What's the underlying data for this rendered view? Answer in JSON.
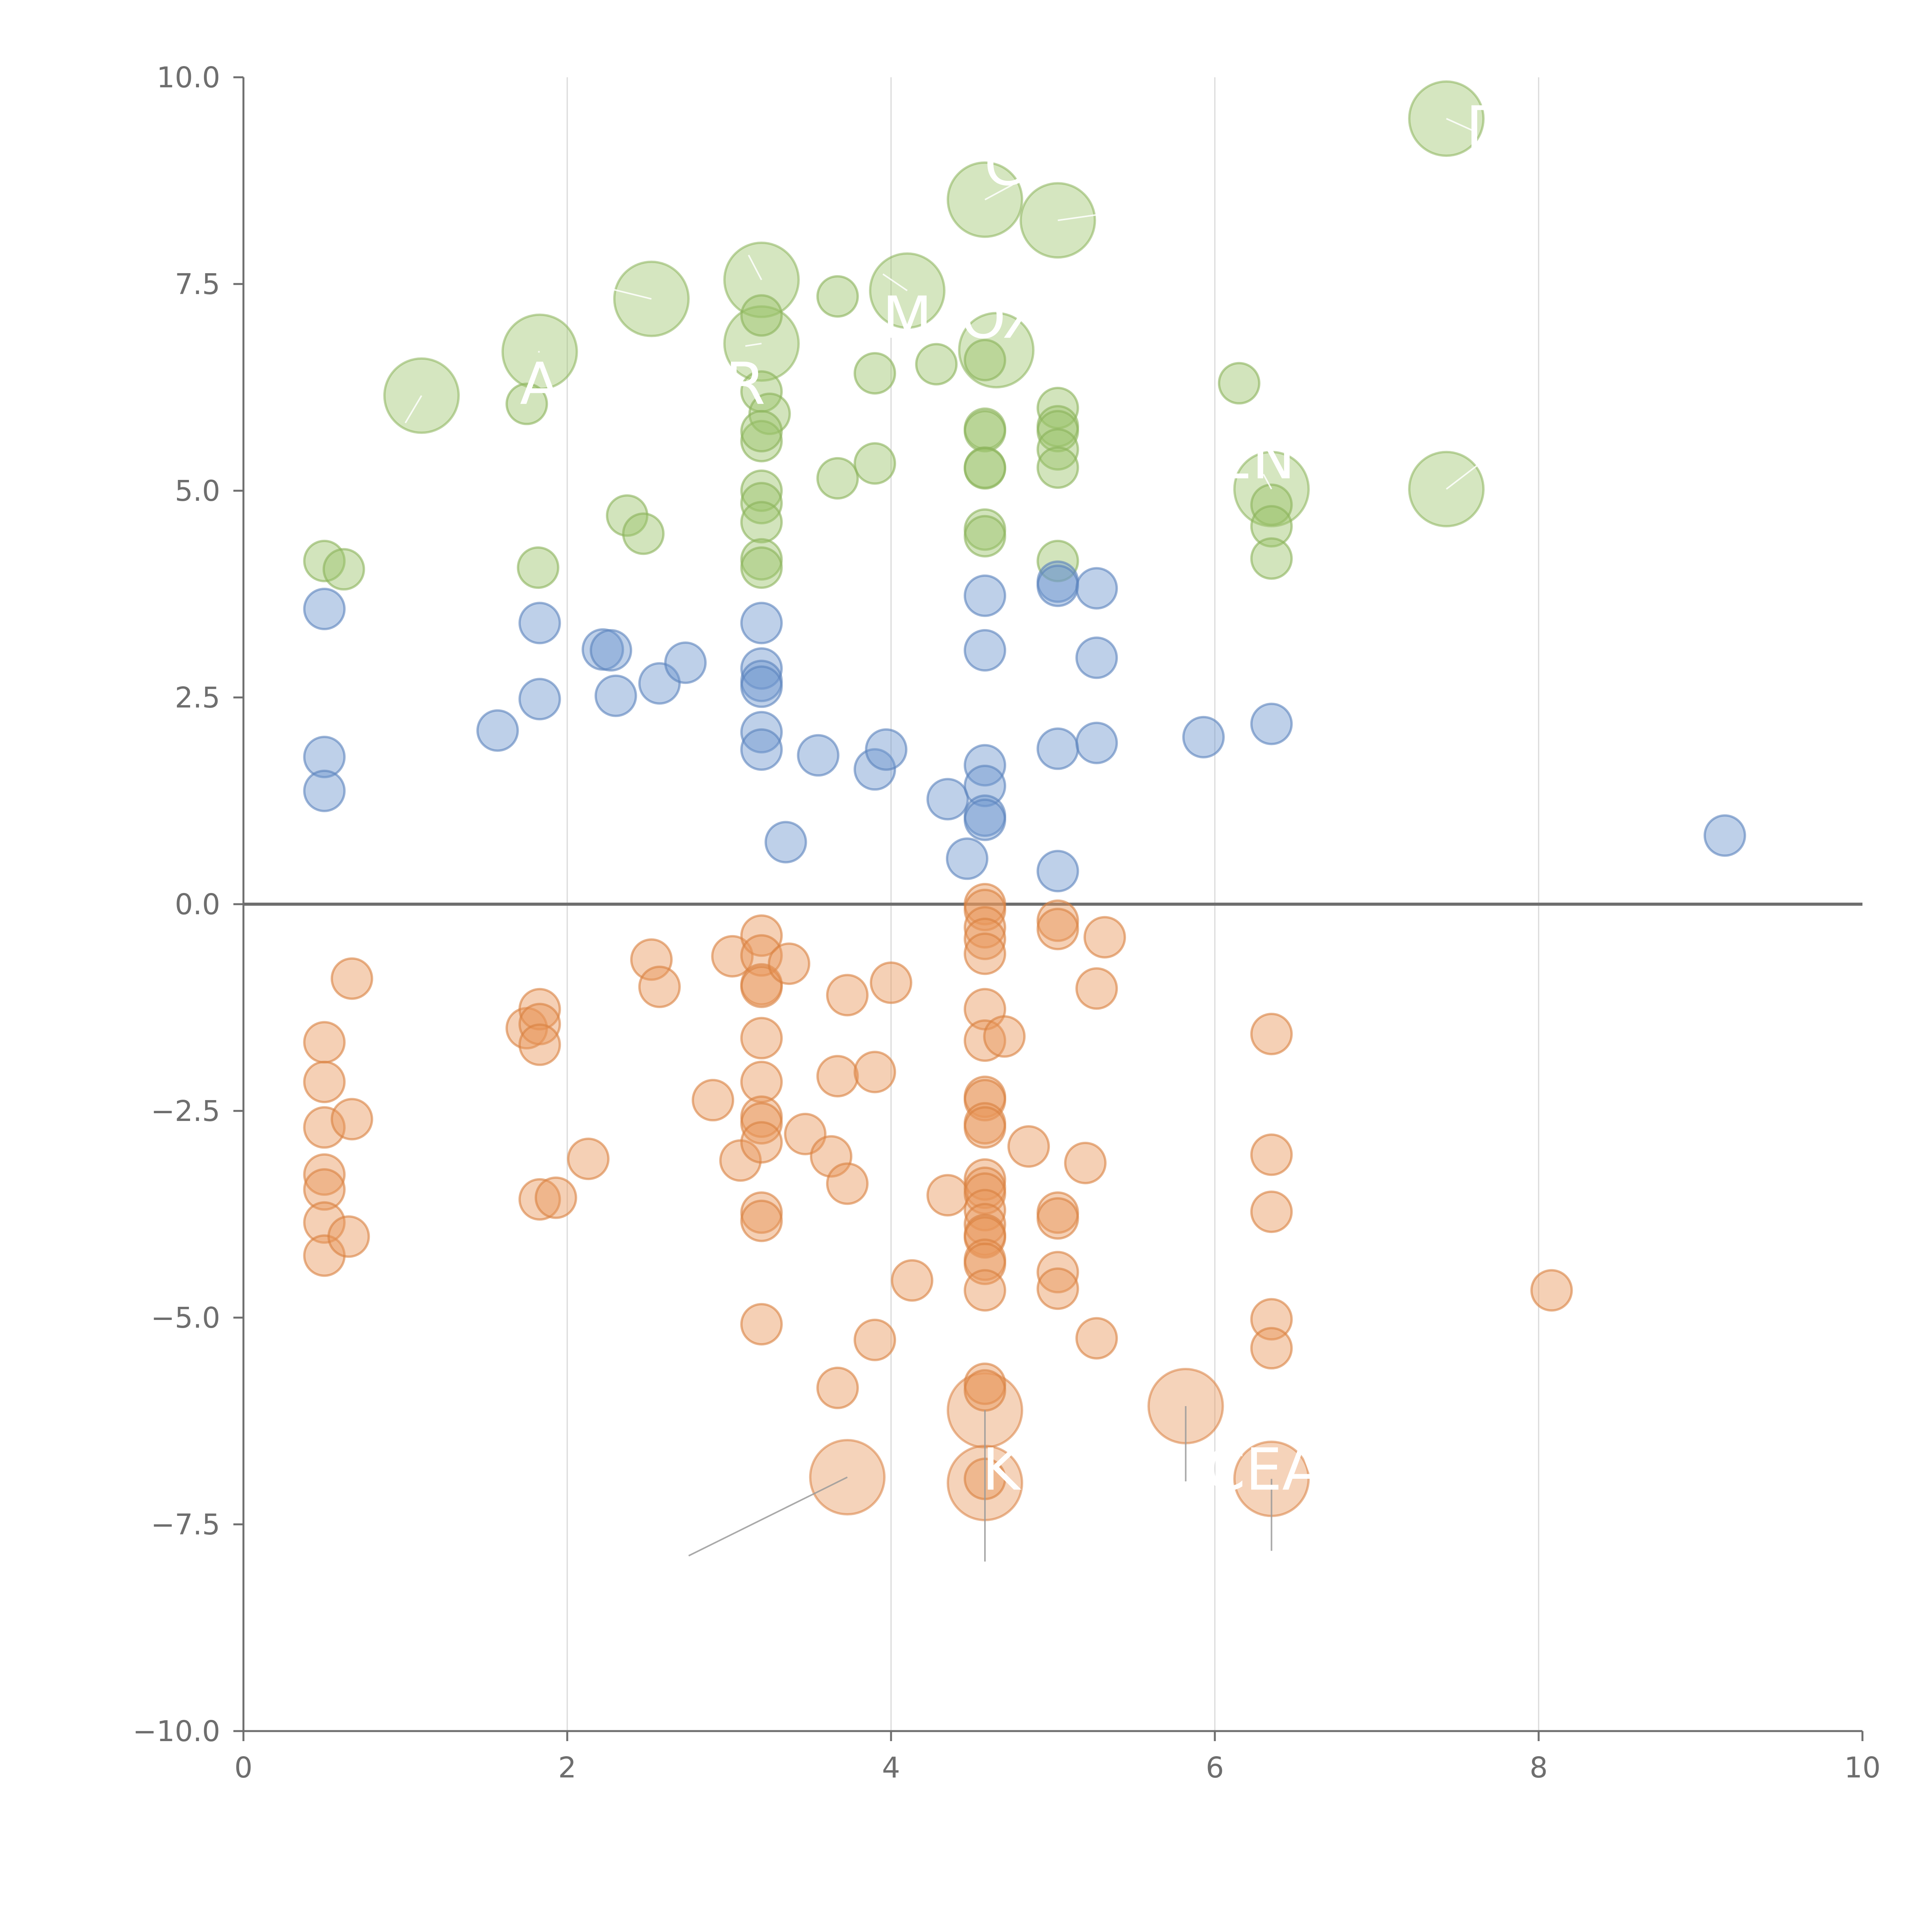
{
  "chart_data": {
    "type": "scatter",
    "title": "",
    "xlabel": "",
    "ylabel": "",
    "xlim": [
      0,
      10
    ],
    "ylim": [
      -10,
      10
    ],
    "grid": "vertical",
    "reference_line_y": 0,
    "x_ticks": [
      "0",
      "2",
      "4",
      "6",
      "8",
      "10"
    ],
    "y_ticks": [
      "10.0",
      "7.5",
      "5.0",
      "2.5",
      "0.0",
      "−2.5",
      "−5.0",
      "−7.5",
      "−10.0"
    ],
    "x_tick_values": [
      0,
      2,
      4,
      6,
      8,
      10
    ],
    "y_tick_values": [
      10,
      7.5,
      5,
      2.5,
      0,
      -2.5,
      -5,
      -7.5,
      -10
    ],
    "colors": {
      "green": "#9cc36a",
      "blue": "#6f97cf",
      "orange": "#e8965a",
      "green_stroke": "#8ab35a",
      "blue_stroke": "#5a82bd",
      "orange_stroke": "#d9803f",
      "annotation_line": "#9a9a9a",
      "axis": "#6e6e6e"
    },
    "size_scale": {
      "small": 1,
      "large": 2
    },
    "series": [
      {
        "name": "green",
        "color_key": "green",
        "points": [
          [
            0.5,
            4.15
          ],
          [
            0.62,
            4.05
          ],
          [
            1.75,
            6.05
          ],
          [
            1.82,
            4.07
          ],
          [
            2.37,
            4.7
          ],
          [
            2.47,
            4.48
          ],
          [
            3.2,
            7.12
          ],
          [
            3.2,
            6.2
          ],
          [
            3.25,
            5.93
          ],
          [
            3.2,
            5.6
          ],
          [
            3.2,
            5.72
          ],
          [
            3.2,
            5.0
          ],
          [
            3.2,
            4.85
          ],
          [
            3.2,
            4.62
          ],
          [
            3.2,
            4.17
          ],
          [
            3.2,
            4.07
          ],
          [
            3.67,
            7.35
          ],
          [
            3.67,
            5.15
          ],
          [
            3.9,
            6.42
          ],
          [
            3.9,
            5.33
          ],
          [
            4.28,
            6.53
          ],
          [
            4.58,
            6.58
          ],
          [
            4.58,
            5.75
          ],
          [
            4.58,
            5.72
          ],
          [
            4.58,
            5.28
          ],
          [
            4.58,
            5.27
          ],
          [
            4.58,
            4.53
          ],
          [
            4.58,
            4.45
          ],
          [
            5.03,
            6.0
          ],
          [
            5.03,
            5.78
          ],
          [
            5.03,
            5.72
          ],
          [
            5.03,
            5.5
          ],
          [
            5.03,
            5.28
          ],
          [
            5.03,
            4.15
          ],
          [
            6.15,
            6.3
          ],
          [
            6.35,
            4.83
          ],
          [
            6.35,
            4.57
          ],
          [
            6.35,
            4.18
          ]
        ],
        "large_points": [
          [
            1.1,
            6.15
          ],
          [
            1.83,
            6.68
          ],
          [
            2.52,
            7.32
          ],
          [
            3.2,
            7.55
          ],
          [
            3.2,
            6.78
          ],
          [
            4.1,
            7.42
          ],
          [
            4.65,
            6.7
          ],
          [
            4.58,
            8.52
          ],
          [
            5.03,
            8.27
          ],
          [
            6.35,
            5.02
          ],
          [
            7.43,
            9.5
          ],
          [
            7.43,
            5.02
          ]
        ]
      },
      {
        "name": "blue",
        "color_key": "blue",
        "points": [
          [
            0.5,
            3.57
          ],
          [
            0.5,
            1.78
          ],
          [
            0.5,
            1.37
          ],
          [
            1.57,
            2.1
          ],
          [
            1.83,
            3.4
          ],
          [
            1.83,
            2.48
          ],
          [
            2.22,
            3.08
          ],
          [
            2.27,
            3.07
          ],
          [
            2.3,
            2.52
          ],
          [
            2.57,
            2.67
          ],
          [
            2.73,
            2.92
          ],
          [
            3.2,
            3.4
          ],
          [
            3.2,
            2.85
          ],
          [
            3.2,
            2.7
          ],
          [
            3.2,
            2.63
          ],
          [
            3.2,
            2.08
          ],
          [
            3.2,
            1.87
          ],
          [
            3.35,
            0.75
          ],
          [
            3.55,
            1.8
          ],
          [
            3.9,
            1.63
          ],
          [
            3.97,
            1.87
          ],
          [
            4.35,
            1.27
          ],
          [
            4.47,
            0.55
          ],
          [
            4.58,
            3.73
          ],
          [
            4.58,
            3.07
          ],
          [
            4.58,
            1.68
          ],
          [
            4.58,
            1.43
          ],
          [
            4.58,
            1.07
          ],
          [
            4.58,
            1.02
          ],
          [
            5.03,
            3.9
          ],
          [
            5.03,
            3.85
          ],
          [
            5.03,
            1.88
          ],
          [
            5.03,
            0.4
          ],
          [
            5.27,
            3.82
          ],
          [
            5.27,
            2.98
          ],
          [
            5.27,
            1.95
          ],
          [
            5.93,
            2.02
          ],
          [
            6.35,
            2.18
          ],
          [
            9.15,
            0.83
          ]
        ]
      },
      {
        "name": "orange",
        "color_key": "orange",
        "points": [
          [
            0.5,
            -1.67
          ],
          [
            0.5,
            -2.15
          ],
          [
            0.5,
            -2.7
          ],
          [
            0.5,
            -3.27
          ],
          [
            0.5,
            -3.45
          ],
          [
            0.5,
            -3.85
          ],
          [
            0.5,
            -4.25
          ],
          [
            0.67,
            -0.9
          ],
          [
            0.67,
            -2.6
          ],
          [
            0.65,
            -4.02
          ],
          [
            1.75,
            -1.5
          ],
          [
            1.83,
            -1.27
          ],
          [
            1.83,
            -1.45
          ],
          [
            1.83,
            -1.7
          ],
          [
            1.83,
            -3.57
          ],
          [
            1.93,
            -3.55
          ],
          [
            2.13,
            -3.08
          ],
          [
            2.52,
            -0.67
          ],
          [
            2.57,
            -1.0
          ],
          [
            2.9,
            -2.37
          ],
          [
            3.02,
            -0.63
          ],
          [
            3.07,
            -3.1
          ],
          [
            3.2,
            -0.38
          ],
          [
            3.2,
            -0.62
          ],
          [
            3.2,
            -0.97
          ],
          [
            3.2,
            -1.0
          ],
          [
            3.2,
            -1.62
          ],
          [
            3.2,
            -2.15
          ],
          [
            3.2,
            -2.57
          ],
          [
            3.2,
            -2.65
          ],
          [
            3.2,
            -2.88
          ],
          [
            3.2,
            -3.73
          ],
          [
            3.2,
            -3.83
          ],
          [
            3.2,
            -5.08
          ],
          [
            3.37,
            -0.72
          ],
          [
            3.47,
            -2.78
          ],
          [
            3.63,
            -3.05
          ],
          [
            3.67,
            -2.08
          ],
          [
            3.67,
            -5.85
          ],
          [
            3.73,
            -1.1
          ],
          [
            3.73,
            -3.38
          ],
          [
            3.9,
            -2.03
          ],
          [
            3.9,
            -5.27
          ],
          [
            4.0,
            -0.95
          ],
          [
            4.13,
            -4.55
          ],
          [
            4.35,
            -3.52
          ],
          [
            4.58,
            0.0
          ],
          [
            4.58,
            -0.07
          ],
          [
            4.58,
            -0.28
          ],
          [
            4.58,
            -0.42
          ],
          [
            4.58,
            -0.6
          ],
          [
            4.58,
            -1.27
          ],
          [
            4.58,
            -1.65
          ],
          [
            4.7,
            -1.6
          ],
          [
            4.58,
            -2.33
          ],
          [
            4.58,
            -2.37
          ],
          [
            4.58,
            -2.65
          ],
          [
            4.58,
            -2.7
          ],
          [
            4.58,
            -3.33
          ],
          [
            4.58,
            -3.43
          ],
          [
            4.58,
            -3.5
          ],
          [
            4.58,
            -3.7
          ],
          [
            4.58,
            -3.87
          ],
          [
            4.58,
            -4.0
          ],
          [
            4.58,
            -4.03
          ],
          [
            4.58,
            -4.3
          ],
          [
            4.58,
            -4.35
          ],
          [
            4.58,
            -4.67
          ],
          [
            4.58,
            -5.8
          ],
          [
            4.58,
            -5.88
          ],
          [
            4.58,
            -6.95
          ],
          [
            4.85,
            -2.93
          ],
          [
            5.03,
            -0.2
          ],
          [
            5.03,
            -0.3
          ],
          [
            5.03,
            -3.73
          ],
          [
            5.03,
            -3.8
          ],
          [
            5.03,
            -4.45
          ],
          [
            5.03,
            -4.65
          ],
          [
            5.2,
            -3.13
          ],
          [
            5.27,
            -1.02
          ],
          [
            5.27,
            -5.25
          ],
          [
            5.32,
            -0.4
          ],
          [
            6.35,
            -1.57
          ],
          [
            6.35,
            -3.03
          ],
          [
            6.35,
            -3.72
          ],
          [
            6.35,
            -5.02
          ],
          [
            6.35,
            -5.37
          ],
          [
            8.08,
            -4.67
          ]
        ],
        "large_points": [
          [
            3.73,
            -6.93
          ],
          [
            4.58,
            -6.12
          ],
          [
            4.58,
            -7.0
          ],
          [
            5.82,
            -6.07
          ],
          [
            6.35,
            -6.95
          ]
        ]
      }
    ],
    "annotations": [
      {
        "text": "A",
        "series": "green",
        "point": [
          1.1,
          6.15
        ],
        "line_end": [
          1.0,
          5.82
        ],
        "text_at": [
          1.83,
          6.05
        ],
        "anchor": "middle"
      },
      {
        "text": "",
        "series": "green",
        "point": [
          1.83,
          6.68
        ],
        "line_end": [
          1.82,
          6.68
        ],
        "text_at": [
          1.83,
          6.68
        ],
        "anchor": "middle"
      },
      {
        "text": "",
        "series": "green",
        "point": [
          2.52,
          7.32
        ],
        "line_end": [
          2.25,
          7.45
        ],
        "text_at": [
          2.2,
          7.5
        ],
        "anchor": "end"
      },
      {
        "text": "R",
        "series": "green",
        "point": [
          3.2,
          6.78
        ],
        "line_end": [
          3.1,
          6.75
        ],
        "text_at": [
          3.1,
          6.05
        ],
        "anchor": "middle"
      },
      {
        "text": "",
        "series": "green",
        "point": [
          3.2,
          7.55
        ],
        "line_end": [
          3.12,
          7.85
        ],
        "text_at": [
          3.12,
          7.85
        ],
        "anchor": "middle"
      },
      {
        "text": "M",
        "series": "green",
        "point": [
          4.1,
          7.42
        ],
        "line_end": [
          3.95,
          7.62
        ],
        "text_at": [
          4.1,
          6.85
        ],
        "anchor": "middle"
      },
      {
        "text": "OX",
        "series": "green",
        "point": [
          4.65,
          6.7
        ],
        "line_end": [
          4.65,
          6.7
        ],
        "text_at": [
          4.68,
          6.85
        ],
        "anchor": "middle"
      },
      {
        "text": "C",
        "series": "green",
        "point": [
          4.58,
          8.52
        ],
        "line_end": [
          4.75,
          8.7
        ],
        "text_at": [
          4.7,
          8.7
        ],
        "anchor": "middle"
      },
      {
        "text": "",
        "series": "green",
        "point": [
          5.03,
          8.27
        ],
        "line_end": [
          5.5,
          8.4
        ],
        "text_at": [
          5.5,
          8.4
        ],
        "anchor": "start"
      },
      {
        "text": "EN",
        "series": "green",
        "point": [
          6.35,
          5.02
        ],
        "line_end": [
          6.3,
          5.2
        ],
        "text_at": [
          6.25,
          5.15
        ],
        "anchor": "middle"
      },
      {
        "text": "D",
        "series": "green",
        "point": [
          7.43,
          9.5
        ],
        "line_end": [
          7.6,
          9.35
        ],
        "text_at": [
          7.55,
          9.15
        ],
        "anchor": "start"
      },
      {
        "text": "",
        "series": "green",
        "point": [
          7.43,
          5.02
        ],
        "line_end": [
          7.65,
          5.35
        ],
        "text_at": [
          7.65,
          5.35
        ],
        "anchor": "start"
      },
      {
        "text": "",
        "series": "orange",
        "point": [
          3.73,
          -6.93
        ],
        "line_end": [
          2.75,
          -7.88
        ],
        "text_at": [
          2.75,
          -7.88
        ],
        "anchor": "end"
      },
      {
        "text": "K",
        "series": "orange",
        "point": [
          4.58,
          -6.12
        ],
        "line_end": [
          4.58,
          -7.95
        ],
        "text_at": [
          4.68,
          -7.08
        ],
        "anchor": "middle"
      },
      {
        "text": "",
        "series": "orange",
        "point": [
          5.82,
          -6.07
        ],
        "line_end": [
          5.82,
          -6.98
        ],
        "text_at": [
          5.82,
          -6.98
        ],
        "anchor": "middle"
      },
      {
        "text": "CEA",
        "series": "orange",
        "point": [
          6.35,
          -6.95
        ],
        "line_end": [
          6.35,
          -7.82
        ],
        "text_at": [
          6.3,
          -7.08
        ],
        "anchor": "middle"
      }
    ]
  }
}
